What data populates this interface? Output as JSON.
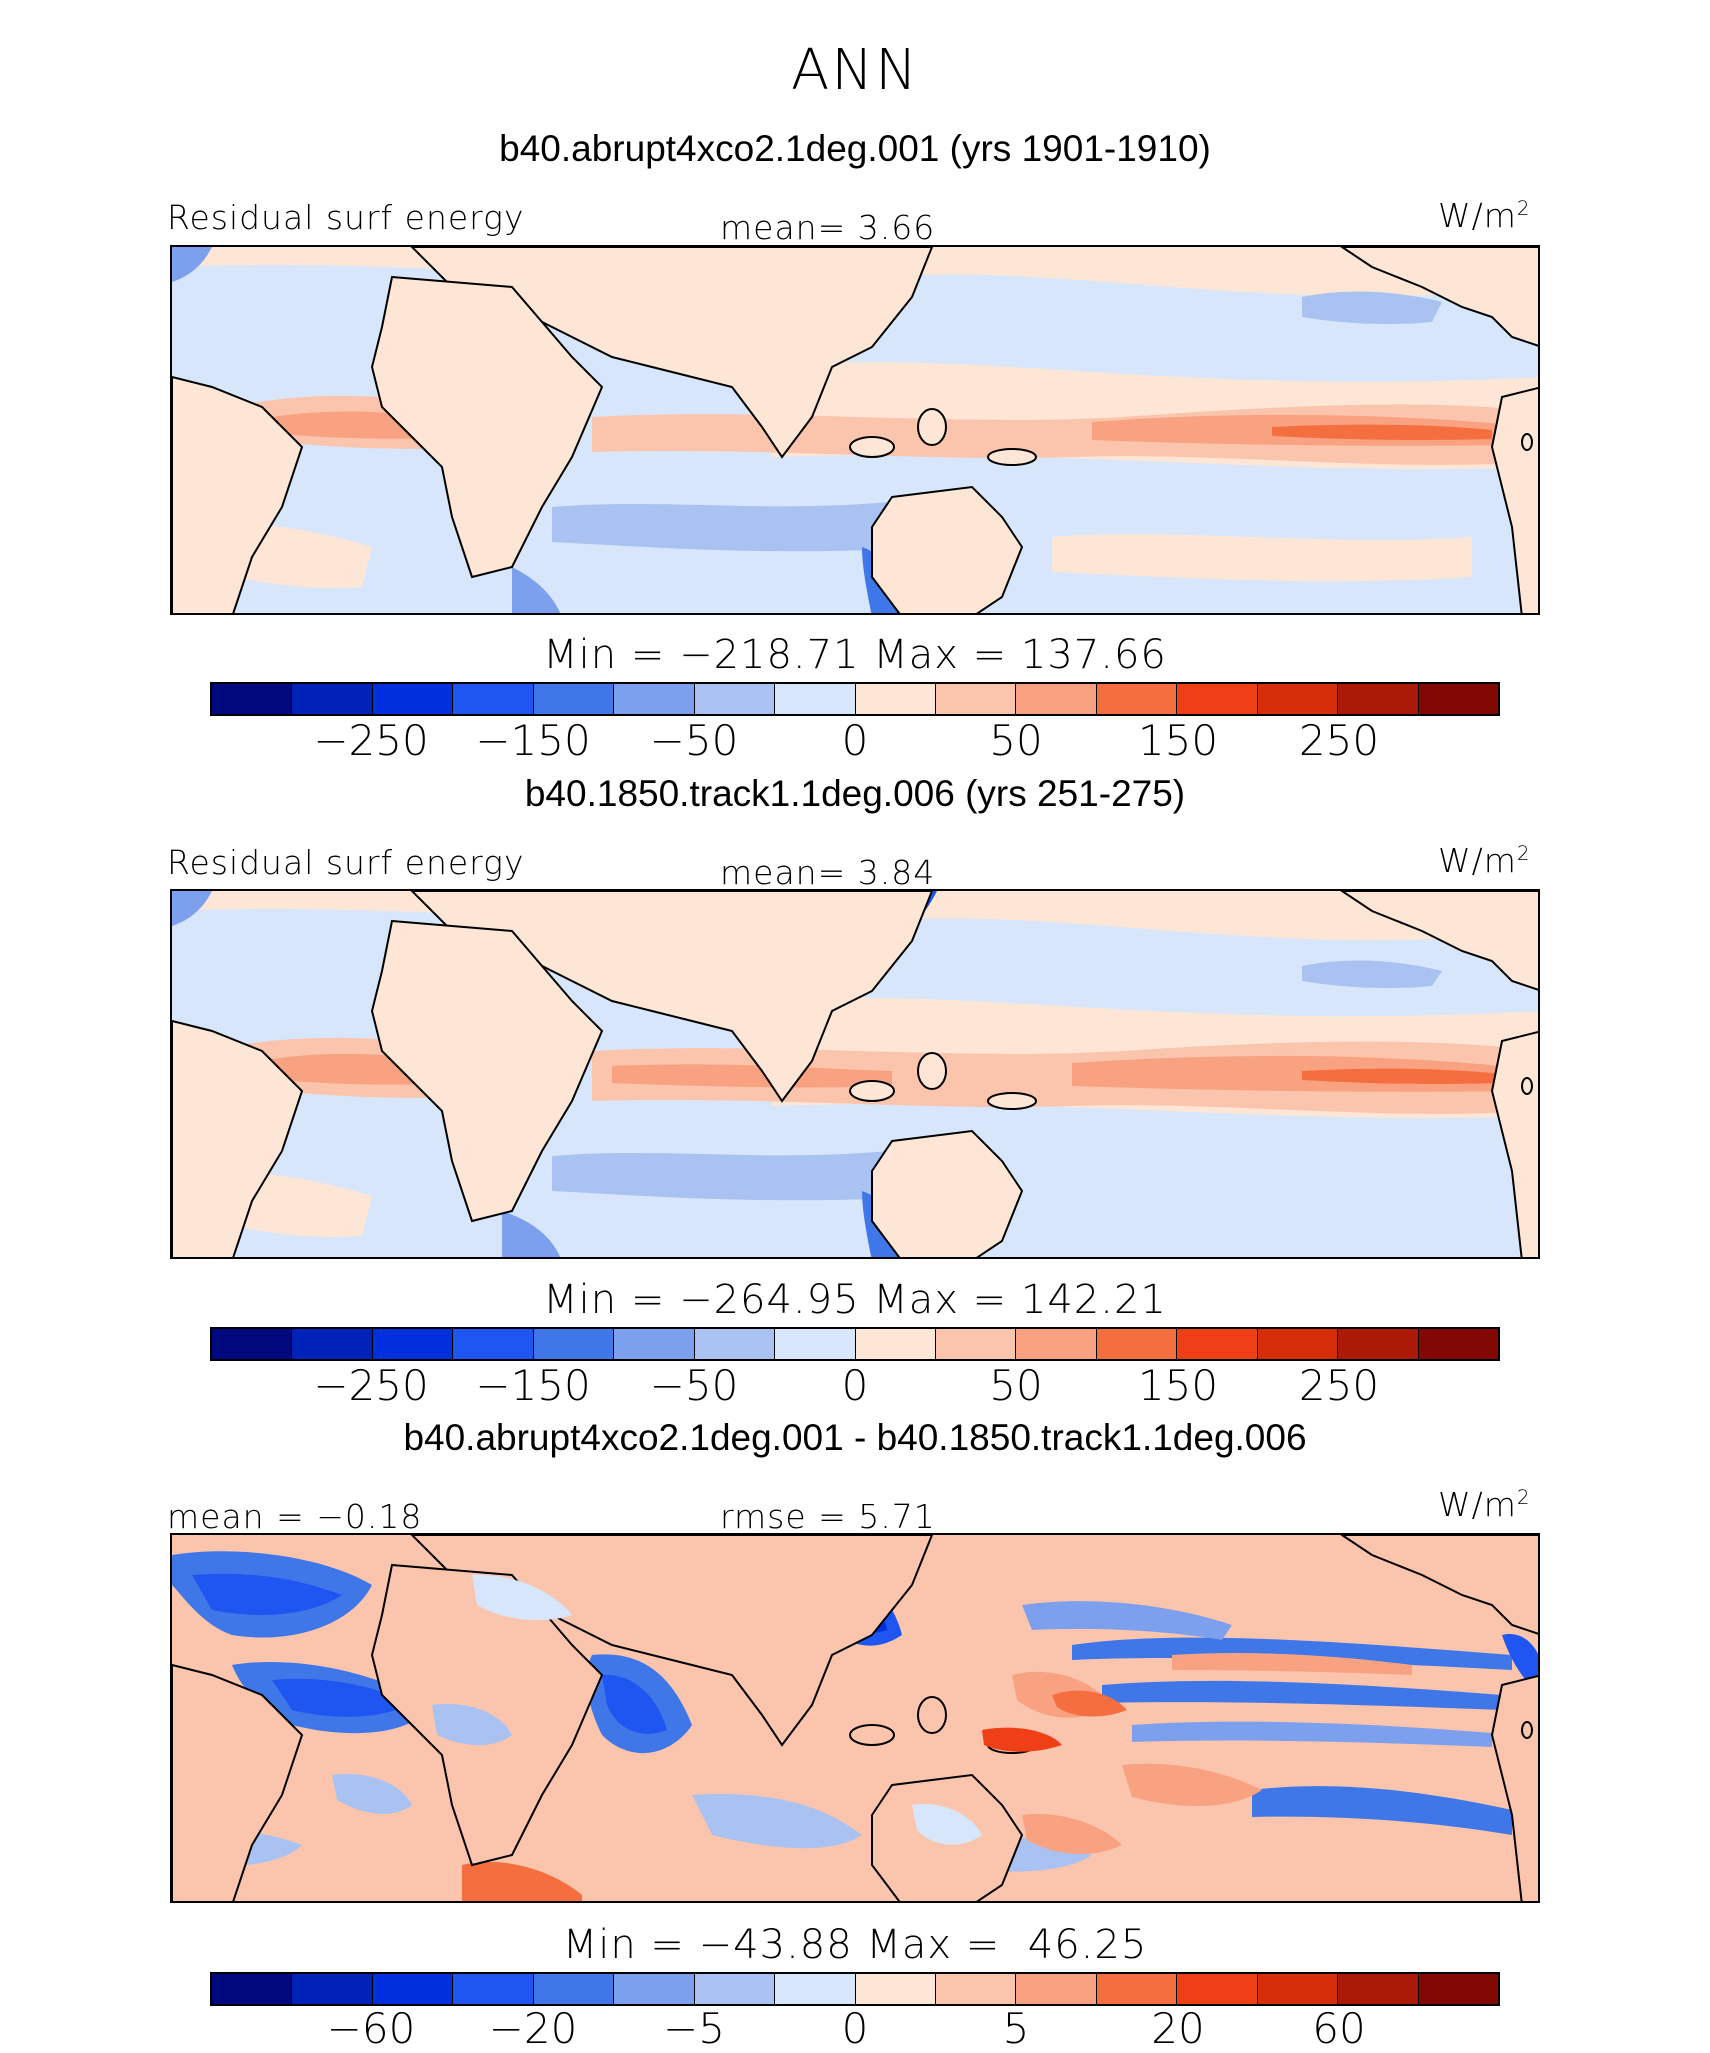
{
  "header": {
    "season": "ANN"
  },
  "units": "W/m",
  "units_exp": "2",
  "palette": [
    "#000a7e",
    "#0022b8",
    "#0030de",
    "#1f55f0",
    "#4077e8",
    "#7da0ee",
    "#aac2f2",
    "#d8e6fb",
    "#fde6d6",
    "#fbc5ad",
    "#f8a282",
    "#f46e40",
    "#ef3f16",
    "#d62e08",
    "#ab1a05",
    "#820804"
  ],
  "land_color": "#fde6d6",
  "panels": [
    {
      "title": "b40.abrupt4xco2.1deg.001 (yrs 1901-1910)",
      "left_label": "Residual surf energy",
      "center_label": "mean=   3.66",
      "minmax": "Min = −218.71 Max = 137.66",
      "ticks": [
        "−250",
        "−150",
        "−50",
        "0",
        "50",
        "150",
        "250"
      ]
    },
    {
      "title": "b40.1850.track1.1deg.006 (yrs 251-275)",
      "left_label": "Residual surf energy",
      "center_label": "mean=   3.84",
      "minmax": "Min = −264.95 Max = 142.21",
      "ticks": [
        "−250",
        "−150",
        "−50",
        "0",
        "50",
        "150",
        "250"
      ]
    },
    {
      "title": "b40.abrupt4xco2.1deg.001 - b40.1850.track1.1deg.006",
      "left_label": "mean =  −0.18",
      "center_label": "rmse =   5.71",
      "minmax": "Min = −43.88 Max =  46.25",
      "ticks": [
        "−60",
        "−20",
        "−5",
        "0",
        "5",
        "20",
        "60"
      ]
    }
  ]
}
